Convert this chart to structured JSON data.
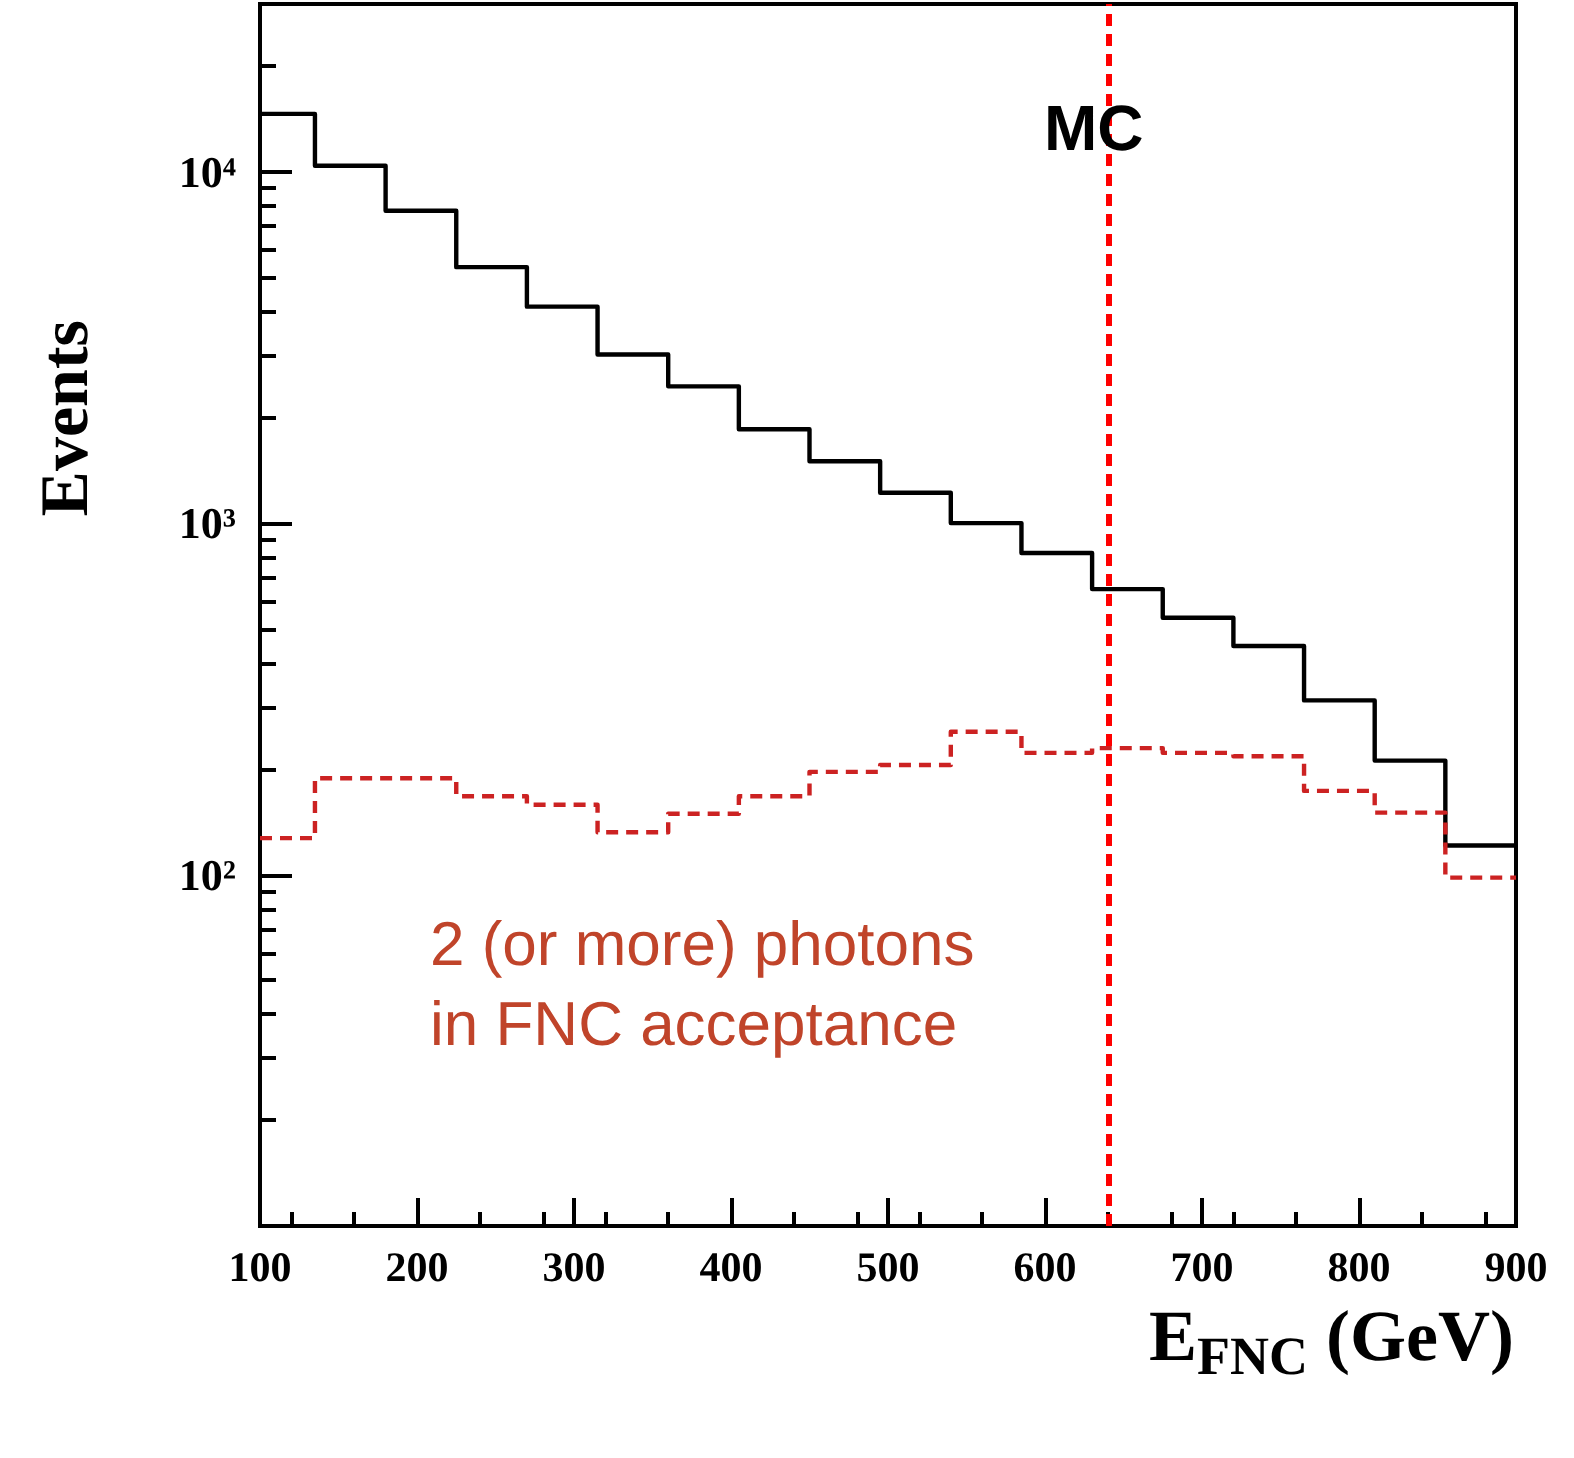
{
  "chart_data": {
    "type": "histogram",
    "xlabel": "E$_{FNC}$ (GeV)",
    "ylabel": "Events",
    "annotations": [
      "MC",
      "2 (or more) photons\nin FNC acceptance"
    ],
    "bins": [
      100,
      135,
      180,
      225,
      270,
      315,
      360,
      405,
      450,
      495,
      540,
      585,
      630,
      675,
      720,
      765,
      810,
      855,
      900
    ],
    "series": [
      {
        "color": "#000000",
        "line_style": "solid",
        "values": [
          14600,
          10400,
          7740,
          5350,
          4130,
          3020,
          2450,
          1850,
          1500,
          1220,
          1000,
          822,
          649,
          538,
          447,
          313,
          211,
          121
        ]
      },
      {
        "color": "#cc2222",
        "line_style": "dashed",
        "values": [
          127,
          188,
          188,
          167,
          158,
          132,
          149,
          167,
          196,
          205,
          255,
          222,
          229,
          222,
          217,
          173,
          150,
          98
        ]
      }
    ],
    "ref_lines": [
      {
        "axis": "x",
        "value": 640,
        "color": "#ff0000",
        "line_style": "dashed"
      }
    ],
    "log": "y",
    "grid": false,
    "xlim": [
      100,
      900
    ],
    "xticks": [
      100,
      200,
      300,
      400,
      500,
      600,
      700,
      800,
      900
    ],
    "ylim": [
      10,
      30000
    ],
    "yticks": [
      {
        "value": 100,
        "label": "10²"
      },
      {
        "value": 1000,
        "label": "10³"
      },
      {
        "value": 10000,
        "label": "10⁴"
      }
    ]
  }
}
